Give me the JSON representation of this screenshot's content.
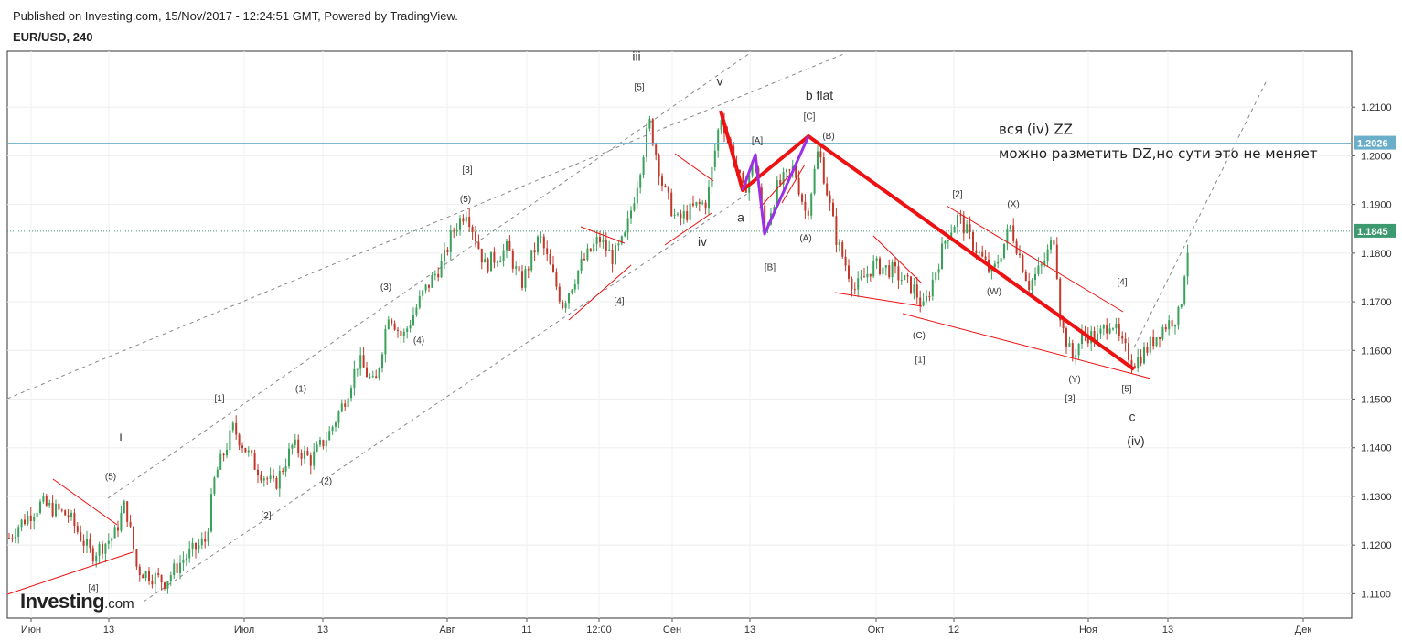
{
  "header": {
    "published": "Published on Investing.com, 15/Nov/2017 - 12:24:51 GMT, Powered by TradingView.",
    "symbol": "EUR/USD, 240"
  },
  "logo": {
    "brand": "Investing",
    "domain": ".com"
  },
  "colors": {
    "up": "#3aa15a",
    "down": "#c0392b",
    "trend_red": "#ee1111",
    "impulse_purple": "#9b30e6",
    "channel": "#888888",
    "hline": "#6aaec9",
    "last_price": "#3d9970",
    "marker_tag": "#6aaec9"
  },
  "chart_data": {
    "type": "candlestick",
    "symbol": "EUR/USD",
    "timeframe": "240",
    "ylim": [
      1.105,
      1.2215
    ],
    "y_ticks": [
      1.11,
      1.12,
      1.13,
      1.14,
      1.15,
      1.16,
      1.17,
      1.18,
      1.19,
      1.2,
      1.21
    ],
    "y_tick_labels": [
      "1.1100",
      "1.1200",
      "1.1300",
      "1.1400",
      "1.1500",
      "1.1600",
      "1.1700",
      "1.1800",
      "1.1900",
      "1.2000",
      "1.2100"
    ],
    "x_tick_labels": [
      "Июн",
      "13",
      "Июл",
      "13",
      "Авг",
      "11",
      "12:00",
      "Сен",
      "13",
      "Окт",
      "12",
      "Ноя",
      "13",
      "Дек"
    ],
    "grid": true,
    "horizontal_line": {
      "value": 1.2026,
      "label": "1.2026"
    },
    "last_price": {
      "value": 1.1845,
      "label": "1.1845"
    },
    "price_path": [
      [
        0,
        1.119
      ],
      [
        20,
        1.124
      ],
      [
        45,
        1.1285
      ],
      [
        75,
        1.126
      ],
      [
        100,
        1.118
      ],
      [
        125,
        1.122
      ],
      [
        137,
        1.1285
      ],
      [
        150,
        1.115
      ],
      [
        180,
        1.1125
      ],
      [
        200,
        1.117
      ],
      [
        225,
        1.121
      ],
      [
        235,
        1.134
      ],
      [
        255,
        1.144
      ],
      [
        280,
        1.136
      ],
      [
        300,
        1.132
      ],
      [
        320,
        1.1405
      ],
      [
        340,
        1.1375
      ],
      [
        360,
        1.143
      ],
      [
        375,
        1.149
      ],
      [
        392,
        1.158
      ],
      [
        410,
        1.1525
      ],
      [
        425,
        1.168
      ],
      [
        440,
        1.1625
      ],
      [
        462,
        1.1715
      ],
      [
        485,
        1.1785
      ],
      [
        495,
        1.1845
      ],
      [
        510,
        1.189
      ],
      [
        530,
        1.1775
      ],
      [
        555,
        1.181
      ],
      [
        570,
        1.1735
      ],
      [
        590,
        1.1835
      ],
      [
        615,
        1.1695
      ],
      [
        635,
        1.1775
      ],
      [
        655,
        1.183
      ],
      [
        670,
        1.179
      ],
      [
        683,
        1.183
      ],
      [
        695,
        1.193
      ],
      [
        710,
        1.207
      ],
      [
        725,
        1.1935
      ],
      [
        740,
        1.1865
      ],
      [
        760,
        1.1895
      ],
      [
        773,
        1.1905
      ],
      [
        788,
        1.2085
      ],
      [
        813,
        1.1925
      ],
      [
        825,
        1.1995
      ],
      [
        836,
        1.1845
      ],
      [
        850,
        1.1935
      ],
      [
        868,
        1.1975
      ],
      [
        882,
        1.1875
      ],
      [
        895,
        1.2015
      ],
      [
        915,
        1.1825
      ],
      [
        935,
        1.1725
      ],
      [
        955,
        1.1775
      ],
      [
        975,
        1.1765
      ],
      [
        1000,
        1.1725
      ],
      [
        1010,
        1.1685
      ],
      [
        1035,
        1.1835
      ],
      [
        1048,
        1.1875
      ],
      [
        1065,
        1.1815
      ],
      [
        1085,
        1.1755
      ],
      [
        1105,
        1.1855
      ],
      [
        1125,
        1.1735
      ],
      [
        1140,
        1.1775
      ],
      [
        1153,
        1.1835
      ],
      [
        1160,
        1.1655
      ],
      [
        1172,
        1.1585
      ],
      [
        1185,
        1.1635
      ],
      [
        1200,
        1.1625
      ],
      [
        1215,
        1.1665
      ],
      [
        1225,
        1.1615
      ],
      [
        1240,
        1.1575
      ],
      [
        1255,
        1.1605
      ],
      [
        1270,
        1.1645
      ],
      [
        1290,
        1.1675
      ],
      [
        1297,
        1.1795
      ],
      [
        1303,
        1.1845
      ]
    ],
    "wave_labels": [
      {
        "text": "[4]",
        "size": "small",
        "x": 102,
        "y": 1.1105
      },
      {
        "text": "(5)",
        "size": "small",
        "x": 121,
        "y": 1.1335
      },
      {
        "text": "i",
        "size": "big",
        "x": 132,
        "y": 1.1415
      },
      {
        "text": "[1]",
        "size": "small",
        "x": 240,
        "y": 1.1495
      },
      {
        "text": "[2]",
        "size": "small",
        "x": 291,
        "y": 1.1255
      },
      {
        "text": "(1)",
        "size": "small",
        "x": 329,
        "y": 1.1515
      },
      {
        "text": "(2)",
        "size": "small",
        "x": 357,
        "y": 1.1325
      },
      {
        "text": "(3)",
        "size": "small",
        "x": 422,
        "y": 1.1725
      },
      {
        "text": "(4)",
        "size": "small",
        "x": 458,
        "y": 1.1615
      },
      {
        "text": "[3]",
        "size": "small",
        "x": 511,
        "y": 1.1965
      },
      {
        "text": "(5)",
        "size": "small",
        "x": 509,
        "y": 1.1905
      },
      {
        "text": "[4]",
        "size": "small",
        "x": 677,
        "y": 1.1695
      },
      {
        "text": "iii",
        "size": "big",
        "x": 696,
        "y": 1.2195
      },
      {
        "text": "[5]",
        "size": "small",
        "x": 699,
        "y": 1.2135
      },
      {
        "text": "v",
        "size": "big",
        "x": 787,
        "y": 1.2145
      },
      {
        "text": "iv",
        "size": "big",
        "x": 768,
        "y": 1.1815
      },
      {
        "text": "a",
        "size": "big",
        "x": 810,
        "y": 1.1865
      },
      {
        "text": "[A]",
        "size": "small",
        "x": 828,
        "y": 1.2025
      },
      {
        "text": "[B]",
        "size": "small",
        "x": 842,
        "y": 1.1765
      },
      {
        "text": "b flat",
        "size": "big",
        "x": 896,
        "y": 1.2115
      },
      {
        "text": "[C]",
        "size": "small",
        "x": 885,
        "y": 1.2075
      },
      {
        "text": "(B)",
        "size": "small",
        "x": 906,
        "y": 1.2035
      },
      {
        "text": "(A)",
        "size": "small",
        "x": 881,
        "y": 1.1825
      },
      {
        "text": "(C)",
        "size": "small",
        "x": 1005,
        "y": 1.1625
      },
      {
        "text": "[1]",
        "size": "small",
        "x": 1006,
        "y": 1.1575
      },
      {
        "text": "[2]",
        "size": "small",
        "x": 1047,
        "y": 1.1915
      },
      {
        "text": "(X)",
        "size": "small",
        "x": 1108,
        "y": 1.1895
      },
      {
        "text": "(W)",
        "size": "small",
        "x": 1087,
        "y": 1.1715
      },
      {
        "text": "(Y)",
        "size": "small",
        "x": 1175,
        "y": 1.1535
      },
      {
        "text": "[3]",
        "size": "small",
        "x": 1170,
        "y": 1.1495
      },
      {
        "text": "[4]",
        "size": "small",
        "x": 1227,
        "y": 1.1735
      },
      {
        "text": "[5]",
        "size": "small",
        "x": 1232,
        "y": 1.1515
      },
      {
        "text": "c",
        "size": "big",
        "x": 1238,
        "y": 1.1455
      },
      {
        "text": "(iv)",
        "size": "big",
        "x": 1242,
        "y": 1.1405
      }
    ],
    "annotations": [
      {
        "text": "вся (iv) ZZ",
        "x": 1092,
        "y": 1.2045
      },
      {
        "text": "можно разметить DZ,но сути это не меняет",
        "x": 1092,
        "y": 1.1995
      }
    ]
  }
}
